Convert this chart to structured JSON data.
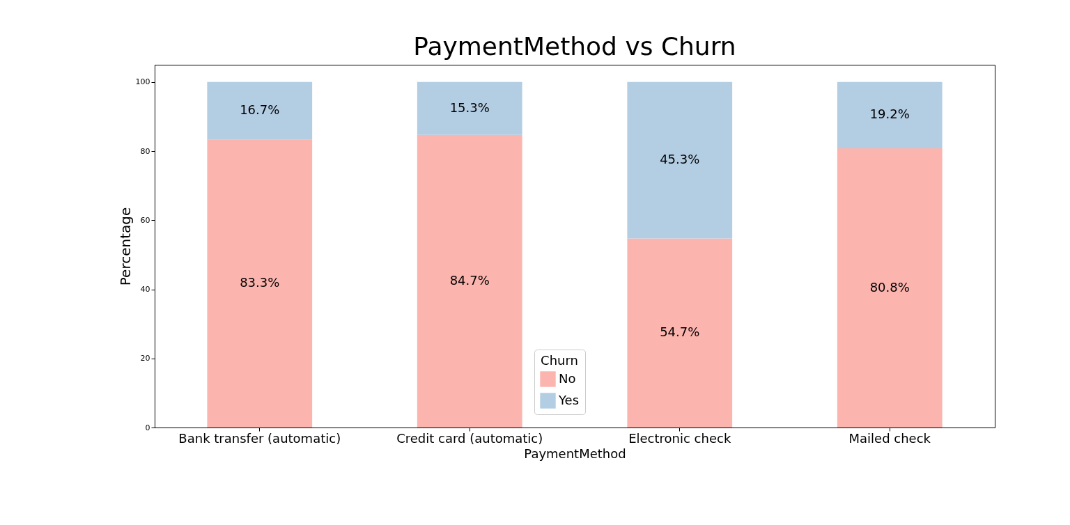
{
  "chart_data": {
    "type": "bar",
    "title": "PaymentMethod vs Churn",
    "xlabel": "PaymentMethod",
    "ylabel": "Percentage",
    "legend_title": "Churn",
    "legend": "bottom",
    "stacked": true,
    "grid": false,
    "categories": [
      "Bank transfer (automatic)",
      "Credit card (automatic)",
      "Electronic check",
      "Mailed check"
    ],
    "ylim": [
      0,
      105
    ],
    "yticks": [
      0,
      20,
      40,
      60,
      80,
      100
    ],
    "series": [
      {
        "name": "No",
        "color": "#fbb4ae",
        "values": [
          83.3,
          84.7,
          54.7,
          80.8
        ],
        "value_labels": [
          "83.3%",
          "84.7%",
          "54.7%",
          "80.8%"
        ]
      },
      {
        "name": "Yes",
        "color": "#b3cde3",
        "values": [
          16.7,
          15.3,
          45.3,
          19.2
        ],
        "value_labels": [
          "16.7%",
          "15.3%",
          "45.3%",
          "19.2%"
        ]
      }
    ]
  }
}
